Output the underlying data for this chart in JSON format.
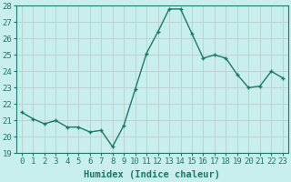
{
  "x": [
    0,
    1,
    2,
    3,
    4,
    5,
    6,
    7,
    8,
    9,
    10,
    11,
    12,
    13,
    14,
    15,
    16,
    17,
    18,
    19,
    20,
    21,
    22,
    23
  ],
  "y": [
    21.5,
    21.1,
    20.8,
    21.0,
    20.6,
    20.6,
    20.3,
    20.4,
    19.4,
    20.7,
    22.9,
    25.1,
    26.4,
    27.8,
    27.8,
    26.3,
    24.8,
    25.0,
    24.8,
    23.8,
    23.0,
    23.1,
    24.0,
    23.6
  ],
  "line_color": "#1a7a6a",
  "marker_color": "#1a7a6a",
  "bg_color": "#c8eeee",
  "grid_color": "#b8c8c8",
  "xlabel": "Humidex (Indice chaleur)",
  "ylim": [
    19,
    28
  ],
  "xlim_min": -0.5,
  "xlim_max": 23.5,
  "yticks": [
    19,
    20,
    21,
    22,
    23,
    24,
    25,
    26,
    27,
    28
  ],
  "xticks": [
    0,
    1,
    2,
    3,
    4,
    5,
    6,
    7,
    8,
    9,
    10,
    11,
    12,
    13,
    14,
    15,
    16,
    17,
    18,
    19,
    20,
    21,
    22,
    23
  ],
  "tick_label_color": "#1a7a6a",
  "xlabel_color": "#1a7a6a",
  "xlabel_fontsize": 7.5,
  "tick_fontsize": 6.5,
  "linewidth": 1.0,
  "markersize": 2.5,
  "marker": "+"
}
